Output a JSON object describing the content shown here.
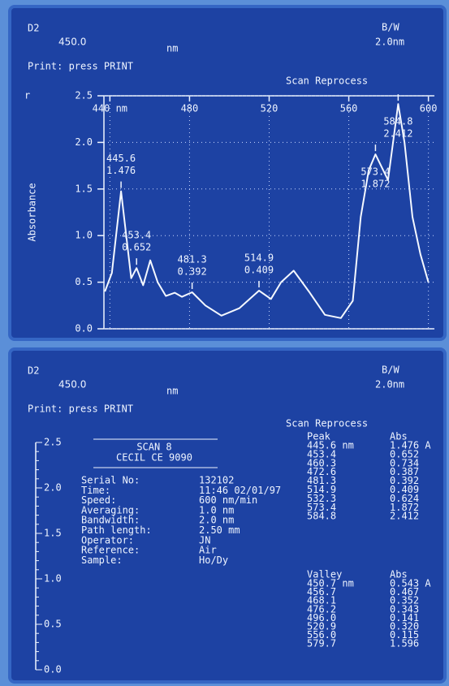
{
  "top": {
    "source": "D2",
    "wavelength": "450.0",
    "unit": "nm",
    "bandwidth_label": "B/W",
    "bandwidth": "2.0nm",
    "prompt": "Print: press PRINT",
    "menu": "Scan Reprocess",
    "marker": "r"
  },
  "chart_data": {
    "type": "line",
    "y_label": "Absorbance",
    "x": [
      437.5,
      441,
      445.6,
      450.7,
      453.4,
      456.7,
      460.3,
      464,
      468.1,
      472.6,
      476.2,
      481.3,
      488,
      496.0,
      505,
      514.9,
      520.9,
      526,
      532.3,
      540,
      548,
      556.0,
      562,
      566,
      570,
      573.4,
      579.7,
      584.8,
      588,
      592,
      596,
      600
    ],
    "series": [
      {
        "color": "#f4f8ff",
        "values": [
          0.4,
          0.6,
          1.476,
          0.543,
          0.652,
          0.467,
          0.734,
          0.5,
          0.352,
          0.387,
          0.343,
          0.392,
          0.25,
          0.141,
          0.22,
          0.409,
          0.32,
          0.5,
          0.624,
          0.4,
          0.15,
          0.115,
          0.3,
          1.2,
          1.7,
          1.872,
          1.596,
          2.412,
          2.0,
          1.2,
          0.8,
          0.5
        ]
      }
    ],
    "xlim": [
      437,
      603
    ],
    "ylim": [
      0,
      2.5
    ],
    "xticks": [
      {
        "value": 440,
        "label": "440 nm"
      },
      480,
      520,
      560,
      600
    ],
    "yticks": [
      {
        "value": 0,
        "label": "0.0"
      },
      {
        "value": 0.5,
        "label": "0.5"
      },
      {
        "value": 1,
        "label": "1.0"
      },
      {
        "value": 1.5,
        "label": "1.5"
      },
      {
        "value": 2,
        "label": "2.0"
      },
      {
        "value": 2.5,
        "label": "2.5"
      }
    ],
    "grid": true,
    "annotations": [
      {
        "x": 445.6,
        "y": 1.476
      },
      {
        "x": 453.4,
        "y": 0.652
      },
      {
        "x": 481.3,
        "y": 0.392
      },
      {
        "x": 514.9,
        "y": 0.409
      },
      {
        "x": 573.4,
        "y": 1.872
      },
      {
        "x": 584.8,
        "y": 2.412
      }
    ]
  },
  "bottom": {
    "source": "D2",
    "wavelength": "450.0",
    "unit": "nm",
    "bandwidth_label": "B/W",
    "bandwidth": "2.0nm",
    "prompt": "Print: press PRINT",
    "menu": "Scan Reprocess",
    "axis_labels": [
      "2.5",
      "2.0",
      "1.5",
      "1.0",
      "0.5",
      "0.0"
    ],
    "report": {
      "title": "SCAN 8",
      "instrument": "CECIL  CE 9090",
      "fields": [
        [
          "Serial No:",
          "132102"
        ],
        [
          "Time:",
          "11:46 02/01/97"
        ],
        [
          "Speed:",
          "600 nm/min"
        ],
        [
          "Averaging:",
          "1.0 nm"
        ],
        [
          "Bandwidth:",
          "2.0 nm"
        ],
        [
          "Path length:",
          "2.50 mm"
        ],
        [
          "Operator:",
          "JN"
        ],
        [
          "Reference:",
          "Air"
        ],
        [
          "Sample:",
          "Ho/Dy"
        ]
      ]
    },
    "peaks": {
      "header": [
        "Peak",
        "Abs"
      ],
      "rows": [
        [
          "445.6 nm",
          "1.476 A"
        ],
        [
          "453.4",
          "0.652"
        ],
        [
          "460.3",
          "0.734"
        ],
        [
          "472.6",
          "0.387"
        ],
        [
          "481.3",
          "0.392"
        ],
        [
          "514.9",
          "0.409"
        ],
        [
          "532.3",
          "0.624"
        ],
        [
          "573.4",
          "1.872"
        ],
        [
          "584.8",
          "2.412"
        ]
      ]
    },
    "valleys": {
      "header": [
        "Valley",
        "Abs"
      ],
      "rows": [
        [
          "450.7 nm",
          "0.543 A"
        ],
        [
          "456.7",
          "0.467"
        ],
        [
          "468.1",
          "0.352"
        ],
        [
          "476.2",
          "0.343"
        ],
        [
          "496.0",
          "0.141"
        ],
        [
          "520.9",
          "0.320"
        ],
        [
          "556.0",
          "0.115"
        ],
        [
          "579.7",
          "1.596"
        ]
      ]
    }
  }
}
